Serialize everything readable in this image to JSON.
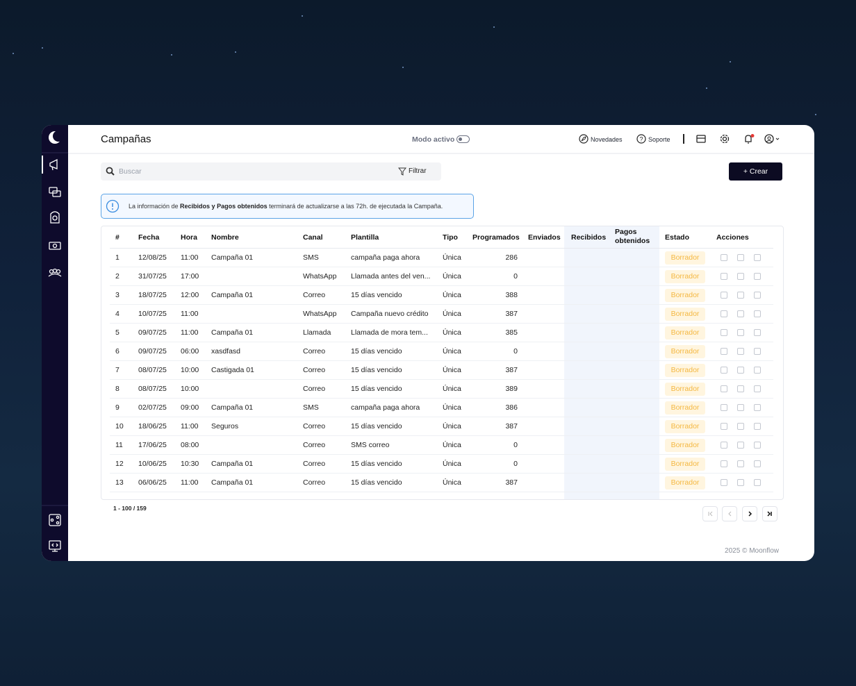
{
  "header": {
    "title": "Campañas",
    "mode_label": "Modo activo",
    "news": "Novedades",
    "support": "Soporte"
  },
  "toolbar": {
    "search_placeholder": "Buscar",
    "filter": "Filtrar",
    "create": "+ Crear"
  },
  "banner": {
    "before": "La información de ",
    "bold": "Recibidos y Pagos obtenidos",
    "after": " terminará de actualizarse a las 72h. de ejecutada la Campaña."
  },
  "table": {
    "columns": [
      "#",
      "Fecha",
      "Hora",
      "Nombre",
      "Canal",
      "Plantilla",
      "Tipo",
      "Programados",
      "Enviados",
      "Recibidos",
      "Pagos obtenidos",
      "Estado",
      "Acciones"
    ],
    "rows": [
      [
        1,
        "12/08/25",
        "11:00",
        "Campaña 01",
        "SMS",
        "campaña paga ahora",
        "Única",
        286,
        "Borrador"
      ],
      [
        2,
        "31/07/25",
        "17:00",
        null,
        "WhatsApp",
        "Llamada antes del ven...",
        "Única",
        0,
        "Borrador"
      ],
      [
        3,
        "18/07/25",
        "12:00",
        "Campaña 01",
        "Correo",
        "15 días vencido",
        "Única",
        388,
        "Borrador"
      ],
      [
        4,
        "10/07/25",
        "11:00",
        null,
        "WhatsApp",
        "Campaña nuevo crédito",
        "Única",
        387,
        "Borrador"
      ],
      [
        5,
        "09/07/25",
        "11:00",
        "Campaña 01",
        "Llamada",
        "Llamada de mora tem...",
        "Única",
        385,
        "Borrador"
      ],
      [
        6,
        "09/07/25",
        "06:00",
        "xasdfasd",
        "Correo",
        "15 días vencido",
        "Única",
        0,
        "Borrador"
      ],
      [
        7,
        "08/07/25",
        "10:00",
        "Castigada 01",
        "Correo",
        "15 días vencido",
        "Única",
        387,
        "Borrador"
      ],
      [
        8,
        "08/07/25",
        "10:00",
        null,
        "Correo",
        "15 días vencido",
        "Única",
        389,
        "Borrador"
      ],
      [
        9,
        "02/07/25",
        "09:00",
        "Campaña 01",
        "SMS",
        "campaña paga ahora",
        "Única",
        386,
        "Borrador"
      ],
      [
        10,
        "18/06/25",
        "11:00",
        "Seguros",
        "Correo",
        "15 días vencido",
        "Única",
        387,
        "Borrador"
      ],
      [
        11,
        "17/06/25",
        "08:00",
        null,
        "Correo",
        "SMS correo",
        "Única",
        0,
        "Borrador"
      ],
      [
        12,
        "10/06/25",
        "10:30",
        "Campaña 01",
        "Correo",
        "15 días vencido",
        "Única",
        0,
        "Borrador"
      ],
      [
        13,
        "06/06/25",
        "11:00",
        "Campaña 01",
        "Correo",
        "15 días vencido",
        "Única",
        387,
        "Borrador"
      ]
    ]
  },
  "pagination": {
    "range": "1 - 100 / 159"
  },
  "footer": {
    "copyright": "2025 © Moonflow"
  }
}
